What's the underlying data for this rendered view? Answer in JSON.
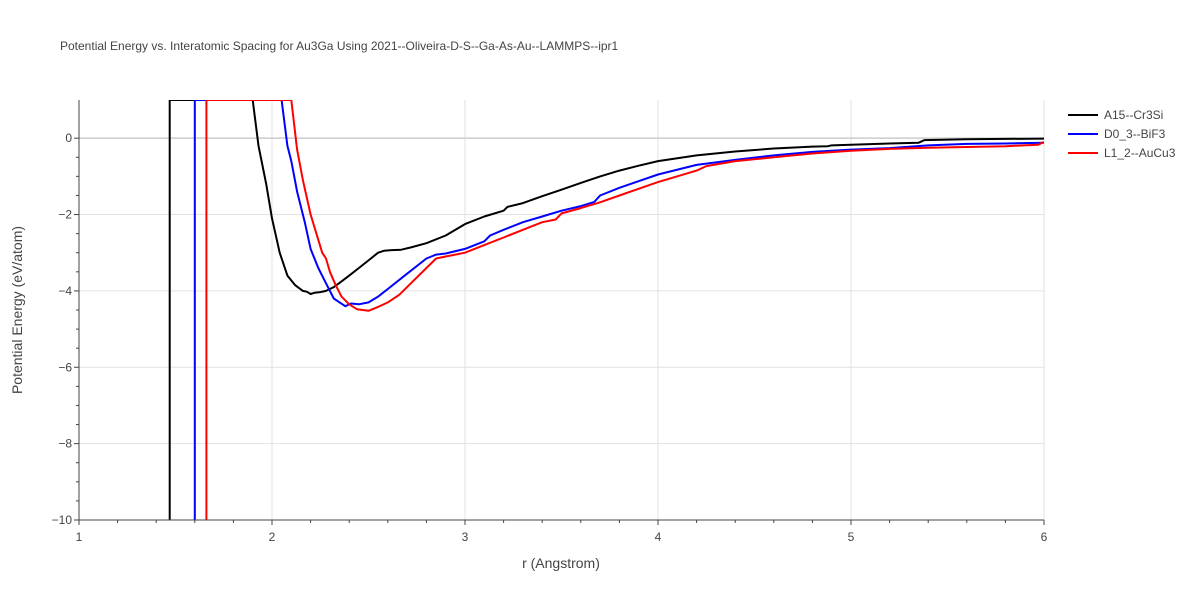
{
  "chart_data": {
    "type": "line",
    "title": "Potential Energy vs. Interatomic Spacing for Au3Ga Using 2021--Oliveira-D-S--Ga-As-Au--LAMMPS--ipr1",
    "xlabel": "r (Angstrom)",
    "ylabel": "Potential Energy (eV/atom)",
    "xlim": [
      1,
      6
    ],
    "ylim": [
      -10,
      1
    ],
    "x_ticks": [
      1,
      2,
      3,
      4,
      5,
      6
    ],
    "x_tick_labels": [
      "1",
      "2",
      "3",
      "4",
      "5",
      "6"
    ],
    "y_ticks": [
      0,
      -2,
      -4,
      -6,
      -8,
      -10
    ],
    "y_tick_labels": [
      "0",
      "−2",
      "−4",
      "−6",
      "−8",
      "−10"
    ],
    "grid": true,
    "legend_position": "top-right",
    "series": [
      {
        "name": "A15--Cr3Si",
        "color": "#000000",
        "x": [
          1.47,
          1.47,
          1.9,
          1.93,
          1.97,
          2.0,
          2.04,
          2.08,
          2.12,
          2.16,
          2.18,
          2.2,
          2.22,
          2.25,
          2.28,
          2.32,
          2.36,
          2.4,
          2.45,
          2.5,
          2.55,
          2.58,
          2.62,
          2.67,
          2.72,
          2.8,
          2.9,
          3.0,
          3.1,
          3.2,
          3.22,
          3.3,
          3.4,
          3.5,
          3.6,
          3.7,
          3.8,
          3.9,
          4.0,
          4.2,
          4.4,
          4.6,
          4.8,
          4.88,
          4.9,
          5.0,
          5.2,
          5.35,
          5.38,
          5.6,
          5.8,
          6.0
        ],
        "y": [
          -10.5,
          1.0,
          1.0,
          -0.2,
          -1.2,
          -2.1,
          -3.0,
          -3.6,
          -3.85,
          -4.0,
          -4.02,
          -4.08,
          -4.05,
          -4.03,
          -4.0,
          -3.9,
          -3.75,
          -3.6,
          -3.4,
          -3.2,
          -3.0,
          -2.95,
          -2.93,
          -2.92,
          -2.86,
          -2.75,
          -2.55,
          -2.25,
          -2.05,
          -1.9,
          -1.8,
          -1.7,
          -1.52,
          -1.35,
          -1.17,
          -1.0,
          -0.85,
          -0.72,
          -0.6,
          -0.45,
          -0.35,
          -0.27,
          -0.22,
          -0.21,
          -0.19,
          -0.17,
          -0.14,
          -0.12,
          -0.05,
          -0.03,
          -0.02,
          -0.01
        ]
      },
      {
        "name": "D0_3--BiF3",
        "color": "#0000ff",
        "x": [
          1.6,
          1.6,
          2.05,
          2.08,
          2.1,
          2.13,
          2.17,
          2.2,
          2.24,
          2.28,
          2.32,
          2.35,
          2.38,
          2.41,
          2.45,
          2.5,
          2.55,
          2.6,
          2.7,
          2.8,
          2.85,
          2.9,
          3.0,
          3.1,
          3.13,
          3.2,
          3.3,
          3.4,
          3.5,
          3.6,
          3.67,
          3.7,
          3.8,
          4.0,
          4.2,
          4.4,
          4.6,
          4.8,
          5.0,
          5.2,
          5.4,
          5.6,
          5.8,
          6.0
        ],
        "y": [
          -10.5,
          1.0,
          1.0,
          -0.2,
          -0.6,
          -1.4,
          -2.2,
          -2.9,
          -3.4,
          -3.8,
          -4.2,
          -4.3,
          -4.4,
          -4.33,
          -4.35,
          -4.3,
          -4.15,
          -3.95,
          -3.55,
          -3.15,
          -3.05,
          -3.02,
          -2.9,
          -2.7,
          -2.55,
          -2.4,
          -2.2,
          -2.05,
          -1.9,
          -1.78,
          -1.67,
          -1.5,
          -1.3,
          -0.95,
          -0.7,
          -0.57,
          -0.45,
          -0.36,
          -0.3,
          -0.26,
          -0.19,
          -0.15,
          -0.14,
          -0.12
        ]
      },
      {
        "name": "L1_2--AuCu3",
        "color": "#ff0000",
        "x": [
          1.66,
          1.66,
          2.1,
          2.13,
          2.16,
          2.2,
          2.23,
          2.26,
          2.28,
          2.3,
          2.33,
          2.36,
          2.4,
          2.44,
          2.5,
          2.55,
          2.6,
          2.66,
          2.7,
          2.8,
          2.85,
          2.9,
          3.0,
          3.1,
          3.2,
          3.3,
          3.4,
          3.47,
          3.5,
          3.6,
          3.7,
          3.8,
          4.0,
          4.2,
          4.25,
          4.4,
          4.6,
          4.8,
          5.0,
          5.2,
          5.4,
          5.6,
          5.8,
          5.97,
          6.0
        ],
        "y": [
          -10.5,
          1.0,
          1.0,
          -0.3,
          -1.1,
          -2.0,
          -2.5,
          -3.0,
          -3.15,
          -3.5,
          -3.85,
          -4.15,
          -4.35,
          -4.48,
          -4.52,
          -4.42,
          -4.3,
          -4.1,
          -3.9,
          -3.4,
          -3.15,
          -3.1,
          -3.0,
          -2.8,
          -2.6,
          -2.4,
          -2.2,
          -2.13,
          -1.97,
          -1.83,
          -1.68,
          -1.5,
          -1.15,
          -0.85,
          -0.73,
          -0.6,
          -0.5,
          -0.4,
          -0.33,
          -0.28,
          -0.25,
          -0.23,
          -0.21,
          -0.17,
          -0.1
        ]
      }
    ]
  }
}
